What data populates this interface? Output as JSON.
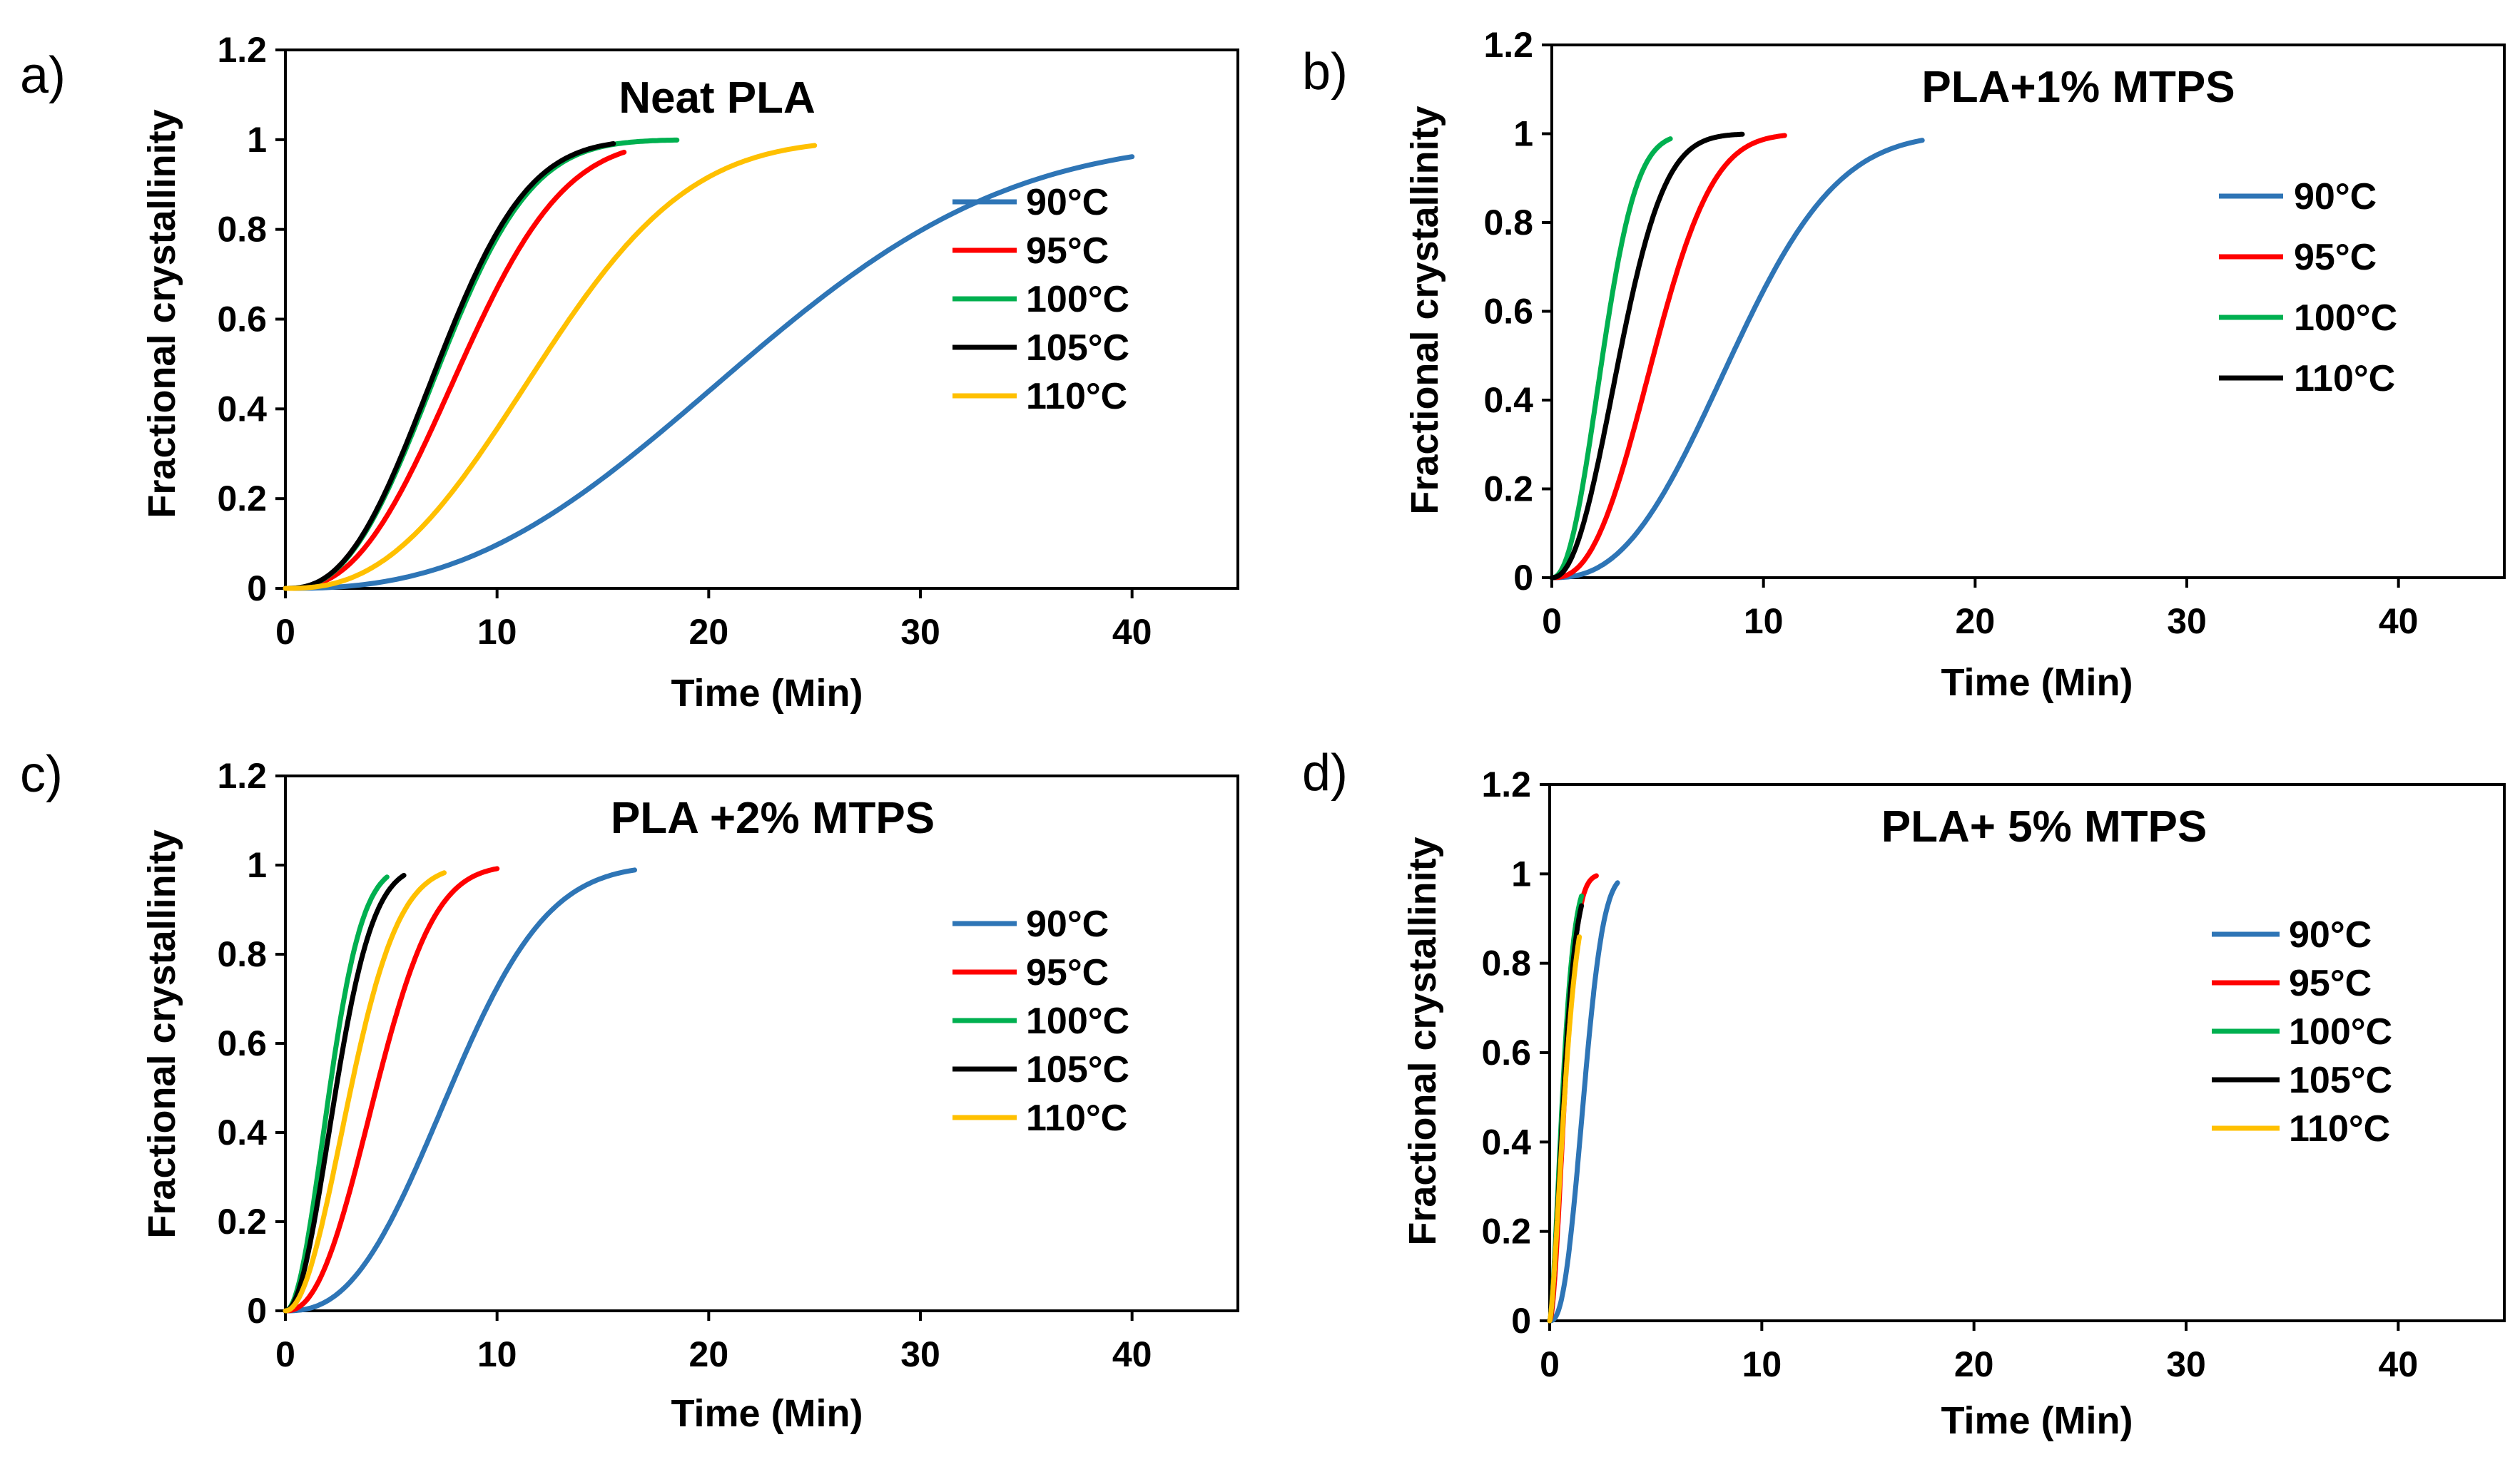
{
  "colors": {
    "90": "#2e75b6",
    "95": "#ff0000",
    "100": "#00b050",
    "105": "#000000",
    "110": "#ffc000"
  },
  "chart_data": [
    {
      "type": "line",
      "panel_label": "a)",
      "title": "Neat PLA",
      "xlabel": "Time (Min)",
      "ylabel": "Fractional crystallinity",
      "xlim": [
        0,
        45
      ],
      "ylim": [
        0,
        1.2
      ],
      "xticks": [
        "0",
        "10",
        "20",
        "30",
        "40"
      ],
      "yticks": [
        "0",
        "0.2",
        "0.4",
        "0.6",
        "0.8",
        "1",
        "1.2"
      ],
      "legend": [
        "90°C",
        "95°C",
        "100°C",
        "105°C",
        "110°C"
      ],
      "series": [
        {
          "name": "90°C",
          "color_key": "90",
          "t_half": 21.5,
          "n": 2.5,
          "t_end": 40
        },
        {
          "name": "95°C",
          "color_key": "95",
          "t_half": 8.3,
          "n": 2.5,
          "t_end": 16
        },
        {
          "name": "100°C",
          "color_key": "100",
          "t_half": 7.3,
          "n": 2.5,
          "t_end": 18.5
        },
        {
          "name": "105°C",
          "color_key": "105",
          "t_half": 7.2,
          "n": 2.5,
          "t_end": 15.5
        },
        {
          "name": "110°C",
          "color_key": "110",
          "t_half": 12.0,
          "n": 2.5,
          "t_end": 25
        }
      ]
    },
    {
      "type": "line",
      "panel_label": "b)",
      "title": "PLA+1% MTPS",
      "xlabel": "Time (Min)",
      "ylabel": "Fractional crystallinity",
      "xlim": [
        0,
        45
      ],
      "ylim": [
        0,
        1.2
      ],
      "xticks": [
        "0",
        "10",
        "20",
        "30",
        "40"
      ],
      "yticks": [
        "0",
        "0.2",
        "0.4",
        "0.6",
        "0.8",
        "1",
        "1.2"
      ],
      "legend": [
        "90°C",
        "95°C",
        "100°C",
        "110°C"
      ],
      "series": [
        {
          "name": "90°C",
          "color_key": "90",
          "t_half": 8.5,
          "n": 2.5,
          "t_end": 17.5
        },
        {
          "name": "95°C",
          "color_key": "95",
          "t_half": 4.8,
          "n": 2.5,
          "t_end": 11
        },
        {
          "name": "100°C",
          "color_key": "100",
          "t_half": 2.4,
          "n": 2.2,
          "t_end": 5.6
        },
        {
          "name": "110°C",
          "color_key": "105",
          "t_half": 3.2,
          "n": 2.2,
          "t_end": 9
        }
      ]
    },
    {
      "type": "line",
      "panel_label": "c)",
      "title": "PLA +2% MTPS",
      "xlabel": "Time (Min)",
      "ylabel": "Fractional crystallinity",
      "xlim": [
        0,
        45
      ],
      "ylim": [
        0,
        1.2
      ],
      "xticks": [
        "0",
        "10",
        "20",
        "30",
        "40"
      ],
      "yticks": [
        "0",
        "0.2",
        "0.4",
        "0.6",
        "0.8",
        "1",
        "1.2"
      ],
      "legend": [
        "90°C",
        "95°C",
        "100°C",
        "105°C",
        "110°C"
      ],
      "series": [
        {
          "name": "90°C",
          "color_key": "90",
          "t_half": 7.8,
          "n": 2.5,
          "t_end": 16.5
        },
        {
          "name": "95°C",
          "color_key": "95",
          "t_half": 4.3,
          "n": 2.3,
          "t_end": 10
        },
        {
          "name": "100°C",
          "color_key": "100",
          "t_half": 2.1,
          "n": 2.0,
          "t_end": 4.8
        },
        {
          "name": "105°C",
          "color_key": "105",
          "t_half": 2.4,
          "n": 2.0,
          "t_end": 5.6
        },
        {
          "name": "110°C",
          "color_key": "110",
          "t_half": 3.1,
          "n": 2.0,
          "t_end": 7.5
        }
      ]
    },
    {
      "type": "line",
      "panel_label": "d)",
      "title": "PLA+ 5% MTPS",
      "xlabel": "Time (Min)",
      "ylabel": "Fractional crystallinity",
      "xlim": [
        0,
        45
      ],
      "ylim": [
        0,
        1.2
      ],
      "xticks": [
        "0",
        "10",
        "20",
        "30",
        "40"
      ],
      "yticks": [
        "0",
        "0.2",
        "0.4",
        "0.6",
        "0.8",
        "1",
        "1.2"
      ],
      "legend": [
        "90°C",
        "95°C",
        "100°C",
        "105°C",
        "110°C"
      ],
      "series": [
        {
          "name": "90°C",
          "color_key": "90",
          "t_half": 1.6,
          "n": 2.5,
          "t_end": 3.2
        },
        {
          "name": "95°C",
          "color_key": "95",
          "t_half": 0.7,
          "n": 1.8,
          "t_end": 2.2
        },
        {
          "name": "100°C",
          "color_key": "100",
          "t_half": 0.6,
          "n": 1.6,
          "t_end": 1.5
        },
        {
          "name": "105°C",
          "color_key": "105",
          "t_half": 0.65,
          "n": 1.6,
          "t_end": 1.5
        },
        {
          "name": "110°C",
          "color_key": "110",
          "t_half": 0.7,
          "n": 1.5,
          "t_end": 1.4
        }
      ]
    }
  ]
}
